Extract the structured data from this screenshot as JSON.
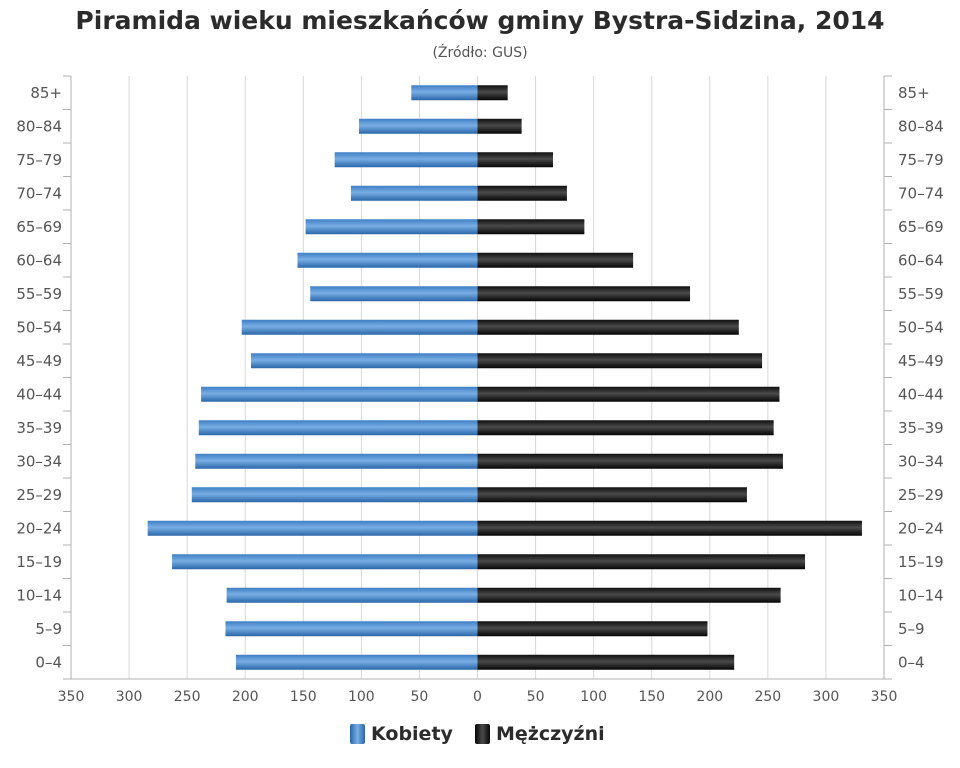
{
  "chart_data": {
    "type": "bar",
    "orientation": "horizontal-population-pyramid",
    "title": "Piramida wieku mieszkańców gminy Bystra-Sidzina, 2014",
    "subtitle": "(Źródło: GUS)",
    "categories": [
      "85+",
      "80-84",
      "75-79",
      "70-74",
      "65-69",
      "60-64",
      "55-59",
      "50-54",
      "45-49",
      "40-44",
      "35-39",
      "30-34",
      "25-29",
      "20-24",
      "15-19",
      "10-14",
      "5-9",
      "0-4"
    ],
    "series": [
      {
        "name": "Kobiety",
        "color": "#3a7abf",
        "values": [
          57,
          102,
          123,
          109,
          148,
          155,
          144,
          203,
          195,
          238,
          240,
          243,
          246,
          284,
          263,
          216,
          217,
          208
        ]
      },
      {
        "name": "Mężczyźni",
        "color": "#1a1a1a",
        "values": [
          26,
          38,
          65,
          77,
          92,
          134,
          183,
          225,
          245,
          260,
          255,
          263,
          232,
          331,
          282,
          261,
          198,
          221
        ]
      }
    ],
    "xlim": [
      -350,
      350
    ],
    "xticks": [
      350,
      300,
      250,
      200,
      150,
      100,
      50,
      0,
      50,
      100,
      150,
      200,
      250,
      300,
      350
    ],
    "grid": true,
    "legend_position": "bottom-center"
  }
}
